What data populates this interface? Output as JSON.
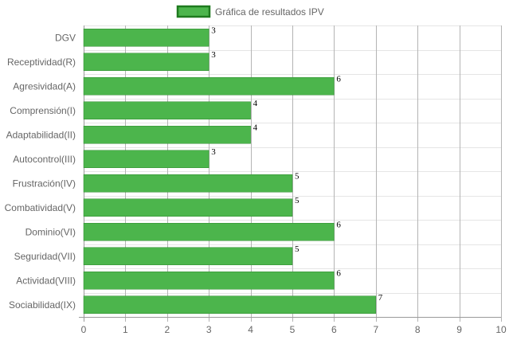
{
  "chart_data": {
    "type": "bar",
    "orientation": "horizontal",
    "categories": [
      "DGV",
      "Receptividad(R)",
      "Agresividad(A)",
      "Comprensión(I)",
      "Adaptabilidad(II)",
      "Autocontrol(III)",
      "Frustración(IV)",
      "Combatividad(V)",
      "Dominio(VI)",
      "Seguridad(VII)",
      "Actividad(VIII)",
      "Sociabilidad(IX)"
    ],
    "series": [
      {
        "name": "Gráfica de resultados IPV",
        "values": [
          3,
          3,
          6,
          4,
          4,
          3,
          5,
          5,
          6,
          5,
          6,
          7
        ],
        "color": "#4cb54c",
        "border_color": "#2e8b2e"
      }
    ],
    "xlim": [
      0,
      10
    ],
    "x_ticks": [
      "0",
      "1",
      "2",
      "3",
      "4",
      "5",
      "6",
      "7",
      "8",
      "9",
      "10"
    ],
    "grid": true,
    "legend_position": "top",
    "data_labels": true
  }
}
